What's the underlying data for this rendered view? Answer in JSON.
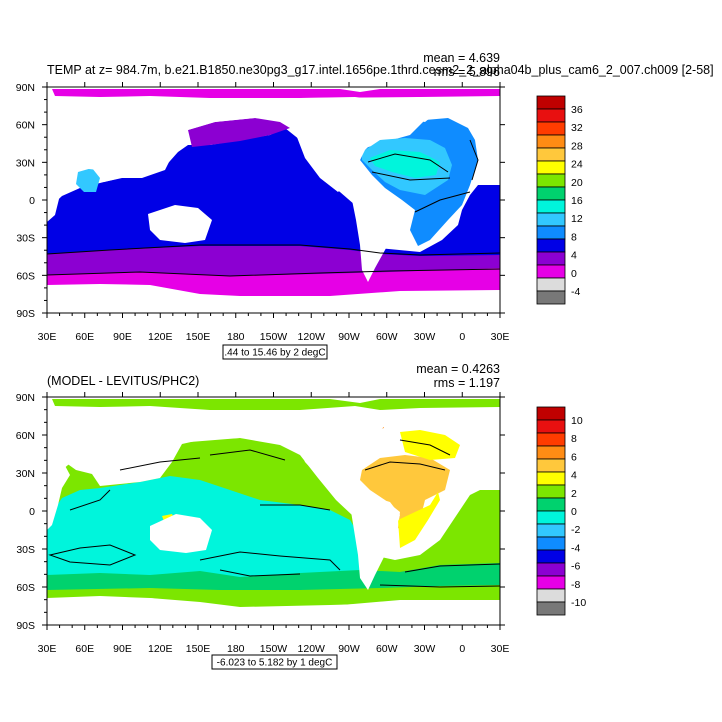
{
  "chart_data": [
    {
      "type": "heatmap",
      "title": "TEMP at z= 984.7m, b.e21.B1850.ne30pg3_g17.intel.1656pe.1thrd.cesm2_2_alpha04b_plus_cam6_2_007.ch009 [2-58]",
      "mean_text": "mean = 4.639",
      "rms_text": "rms = 5.896",
      "contour_note": ".44 to 15.46 by 2 degC",
      "xlabel": "",
      "ylabel": "",
      "x_ticks": [
        "30E",
        "60E",
        "90E",
        "120E",
        "150E",
        "180",
        "150W",
        "120W",
        "90W",
        "60W",
        "30W",
        "0",
        "30E"
      ],
      "y_ticks": [
        "90N",
        "60N",
        "30N",
        "0",
        "30S",
        "60S",
        "90S"
      ],
      "xlim": [
        30,
        390
      ],
      "ylim": [
        -90,
        90
      ],
      "colorbar": {
        "labels": [
          "36",
          "32",
          "28",
          "24",
          "20",
          "16",
          "12",
          "8",
          "4",
          "0",
          "-4"
        ],
        "colors": [
          "#c00000",
          "#e81010",
          "#ff3c00",
          "#ff8c14",
          "#ffc83c",
          "#ffff00",
          "#7ce600",
          "#00d26e",
          "#00f5dc",
          "#32c8ff",
          "#0f8cff",
          "#0000e6",
          "#8c00d2",
          "#e600e6",
          "#dcdcdc",
          "#787878"
        ]
      }
    },
    {
      "type": "heatmap",
      "title": "(MODEL - LEVITUS/PHC2)",
      "mean_text": "mean = 0.4263",
      "rms_text": "rms = 1.197",
      "contour_note": "-6.023 to 5.182 by 1 degC",
      "xlabel": "",
      "ylabel": "",
      "x_ticks": [
        "30E",
        "60E",
        "90E",
        "120E",
        "150E",
        "180",
        "150W",
        "120W",
        "90W",
        "60W",
        "30W",
        "0",
        "30E"
      ],
      "y_ticks": [
        "90N",
        "60N",
        "30N",
        "0",
        "30S",
        "60S",
        "90S"
      ],
      "xlim": [
        30,
        390
      ],
      "ylim": [
        -90,
        90
      ],
      "colorbar": {
        "labels": [
          "10",
          "8",
          "6",
          "4",
          "2",
          "0",
          "-2",
          "-4",
          "-6",
          "-8",
          "-10"
        ],
        "colors": [
          "#c00000",
          "#e81010",
          "#ff3c00",
          "#ff8c14",
          "#ffc83c",
          "#ffff00",
          "#7ce600",
          "#00d26e",
          "#00f5dc",
          "#32c8ff",
          "#0f8cff",
          "#0000e6",
          "#8c00d2",
          "#e600e6",
          "#dcdcdc",
          "#787878"
        ]
      }
    }
  ]
}
